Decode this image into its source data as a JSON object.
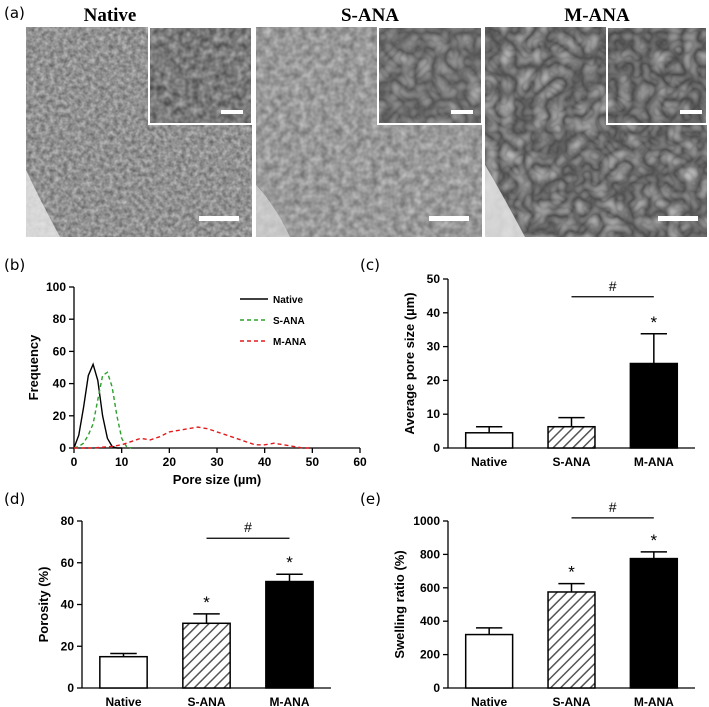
{
  "panel_labels": {
    "a": "(a)",
    "b": "(b)",
    "c": "(c)",
    "d": "(d)",
    "e": "(e)"
  },
  "sem_images": [
    {
      "title": "Native",
      "texture": "fine-pores"
    },
    {
      "title": "S-ANA",
      "texture": "medium-pores"
    },
    {
      "title": "M-ANA",
      "texture": "large-pores"
    }
  ],
  "chart_data": [
    {
      "type": "line",
      "panel": "(b)",
      "xlabel": "Pore size (µm)",
      "ylabel": "Frequency",
      "xlim": [
        0,
        60
      ],
      "ylim": [
        0,
        100
      ],
      "xticks": [
        0,
        10,
        20,
        30,
        40,
        50,
        60
      ],
      "yticks": [
        0,
        20,
        40,
        60,
        80,
        100
      ],
      "legend_position": "top-right",
      "series": [
        {
          "name": "Native",
          "color": "#000000",
          "style": "solid",
          "x": [
            0,
            1,
            2,
            3,
            4,
            5,
            6,
            7,
            8,
            9,
            10
          ],
          "y": [
            0,
            8,
            25,
            45,
            52,
            42,
            20,
            6,
            1,
            0,
            0
          ]
        },
        {
          "name": "S-ANA",
          "color": "#2ca02c",
          "style": "dashed",
          "x": [
            0,
            1,
            2,
            3,
            4,
            5,
            6,
            7,
            8,
            9,
            10,
            11,
            12
          ],
          "y": [
            0,
            1,
            3,
            8,
            15,
            30,
            45,
            47,
            38,
            20,
            6,
            1,
            0
          ]
        },
        {
          "name": "M-ANA",
          "color": "#e31a1c",
          "style": "dashed",
          "x": [
            0,
            4,
            8,
            10,
            12,
            14,
            16,
            18,
            20,
            22,
            24,
            26,
            28,
            30,
            32,
            34,
            36,
            38,
            40,
            42,
            44,
            46,
            48,
            50
          ],
          "y": [
            0,
            0,
            1,
            2,
            4,
            6,
            5,
            7,
            10,
            11,
            12,
            13,
            12,
            10,
            8,
            6,
            4,
            2,
            2,
            3,
            2,
            1,
            0,
            0
          ]
        }
      ]
    },
    {
      "type": "bar",
      "panel": "(c)",
      "categories": [
        "Native",
        "S-ANA",
        "M-ANA"
      ],
      "values": [
        4.5,
        6.3,
        25
      ],
      "errors": [
        1.8,
        2.7,
        8.8
      ],
      "ylabel": "Average pore size (µm)",
      "ylim": [
        0,
        50
      ],
      "yticks": [
        0,
        10,
        20,
        30,
        40,
        50
      ],
      "fills": [
        "white",
        "hatched",
        "black"
      ],
      "star_labels": [
        "",
        "",
        "*"
      ],
      "bracket": {
        "from": 1,
        "to": 2,
        "label": "#"
      }
    },
    {
      "type": "bar",
      "panel": "(d)",
      "categories": [
        "Native",
        "S-ANA",
        "M-ANA"
      ],
      "values": [
        15,
        31,
        51
      ],
      "errors": [
        1.5,
        4.5,
        3.5
      ],
      "ylabel": "Porosity (%)",
      "ylim": [
        0,
        80
      ],
      "yticks": [
        0,
        20,
        40,
        60,
        80
      ],
      "fills": [
        "white",
        "hatched",
        "black"
      ],
      "star_labels": [
        "",
        "*",
        "*"
      ],
      "bracket": {
        "from": 1,
        "to": 2,
        "label": "#"
      }
    },
    {
      "type": "bar",
      "panel": "(e)",
      "categories": [
        "Native",
        "S-ANA",
        "M-ANA"
      ],
      "values": [
        320,
        575,
        775
      ],
      "errors": [
        40,
        50,
        40
      ],
      "ylabel": "Swelling ratio (%)",
      "ylim": [
        0,
        1000
      ],
      "yticks": [
        0,
        200,
        400,
        600,
        800,
        1000
      ],
      "fills": [
        "white",
        "hatched",
        "black"
      ],
      "star_labels": [
        "",
        "*",
        "*"
      ],
      "bracket": {
        "from": 1,
        "to": 2,
        "label": "#"
      }
    }
  ]
}
